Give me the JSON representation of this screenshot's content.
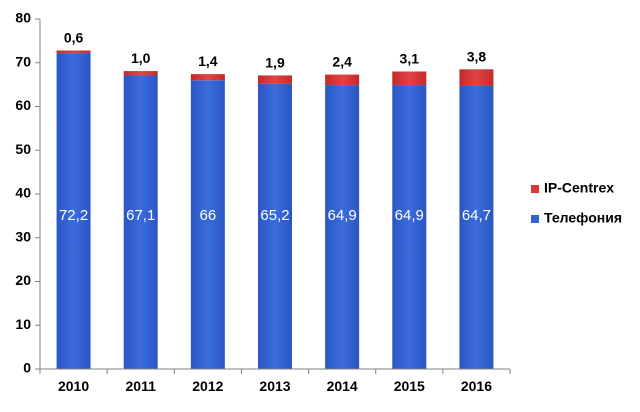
{
  "chart_data": {
    "type": "bar",
    "stacked": true,
    "categories": [
      "2010",
      "2011",
      "2012",
      "2013",
      "2014",
      "2015",
      "2016"
    ],
    "series": [
      {
        "name": "Телефония",
        "values": [
          72.2,
          67.1,
          66,
          65.2,
          64.9,
          64.9,
          64.7
        ],
        "labels": [
          "72,2",
          "67,1",
          "66",
          "65,2",
          "64,9",
          "64,9",
          "64,7"
        ],
        "color": "#3564d2"
      },
      {
        "name": "IP-Centrex",
        "values": [
          0.6,
          1.0,
          1.4,
          1.9,
          2.4,
          3.1,
          3.8
        ],
        "labels": [
          "0,6",
          "1,0",
          "1,4",
          "1,9",
          "2,4",
          "3,1",
          "3,8"
        ],
        "color": "#d73737"
      }
    ],
    "ylim": [
      0,
      80
    ],
    "yticks": [
      "0",
      "10",
      "20",
      "30",
      "40",
      "50",
      "60",
      "70",
      "80"
    ],
    "grid": false,
    "legend_position": "right",
    "title": "",
    "xlabel": "",
    "ylabel": ""
  }
}
